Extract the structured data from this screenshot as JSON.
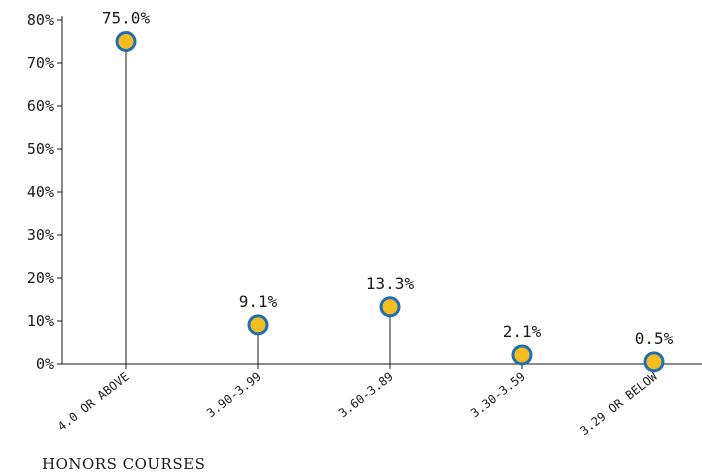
{
  "caption": "HONORS COURSES",
  "colors": {
    "marker_fill": "#f5bd1f",
    "marker_stroke": "#1f6fb2",
    "stem": "#1a1a1a",
    "axis": "#1a1a1a"
  },
  "chart_data": {
    "type": "lollipop",
    "title": "",
    "xlabel": "",
    "ylabel": "",
    "ylim": [
      0,
      80
    ],
    "yticks": [
      "0%",
      "10%",
      "20%",
      "30%",
      "40%",
      "50%",
      "60%",
      "70%",
      "80%"
    ],
    "ytick_values": [
      0,
      10,
      20,
      30,
      40,
      50,
      60,
      70,
      80
    ],
    "categories": [
      "4.0 OR ABOVE",
      "3.90-3.99",
      "3.60-3.89",
      "3.30-3.59",
      "3.29 OR BELOW"
    ],
    "values": [
      75.0,
      9.1,
      13.3,
      2.1,
      0.5
    ],
    "value_labels": [
      "75.0%",
      "9.1%",
      "13.3%",
      "2.1%",
      "0.5%"
    ],
    "grid": false,
    "legend": "none"
  }
}
